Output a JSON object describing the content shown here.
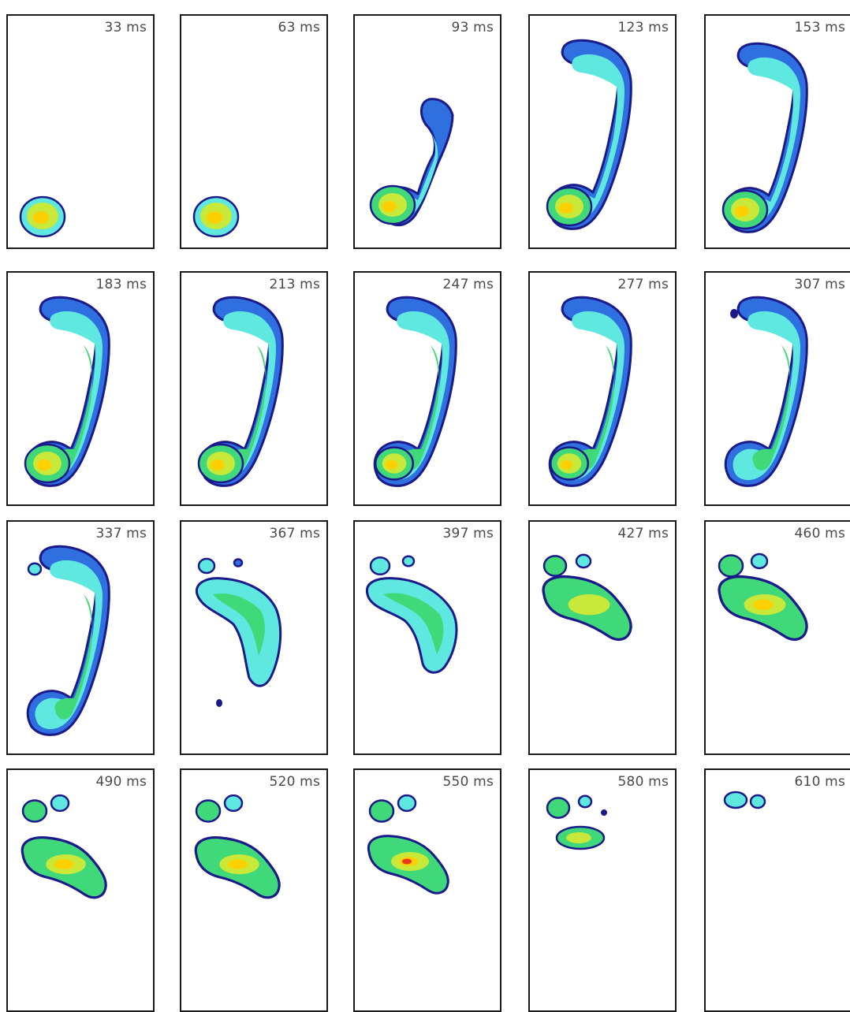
{
  "frames": [
    {
      "label": "33 ms",
      "phase": 0
    },
    {
      "label": "63 ms",
      "phase": 0
    },
    {
      "label": "93 ms",
      "phase": 1
    },
    {
      "label": "123 ms",
      "phase": 2
    },
    {
      "label": "153 ms",
      "phase": 3
    },
    {
      "label": "183 ms",
      "phase": 4
    },
    {
      "label": "213 ms",
      "phase": 4
    },
    {
      "label": "247 ms",
      "phase": 5
    },
    {
      "label": "277 ms",
      "phase": 5
    },
    {
      "label": "307 ms",
      "phase": 6
    },
    {
      "label": "337 ms",
      "phase": 7
    },
    {
      "label": "367 ms",
      "phase": 8
    },
    {
      "label": "397 ms",
      "phase": 9
    },
    {
      "label": "427 ms",
      "phase": 10
    },
    {
      "label": "460 ms",
      "phase": 11
    },
    {
      "label": "490 ms",
      "phase": 12
    },
    {
      "label": "520 ms",
      "phase": 12
    },
    {
      "label": "550 ms",
      "phase": 13
    },
    {
      "label": "580 ms",
      "phase": 14
    },
    {
      "label": "610 ms",
      "phase": 15
    }
  ],
  "colors": {
    "outline": "#1a1a8a",
    "low": "#2f6fe0",
    "mid_low": "#5fe8e0",
    "mid": "#3fd97a",
    "mid_high": "#c8e83a",
    "high": "#ffd000",
    "peak": "#e83a1a"
  }
}
